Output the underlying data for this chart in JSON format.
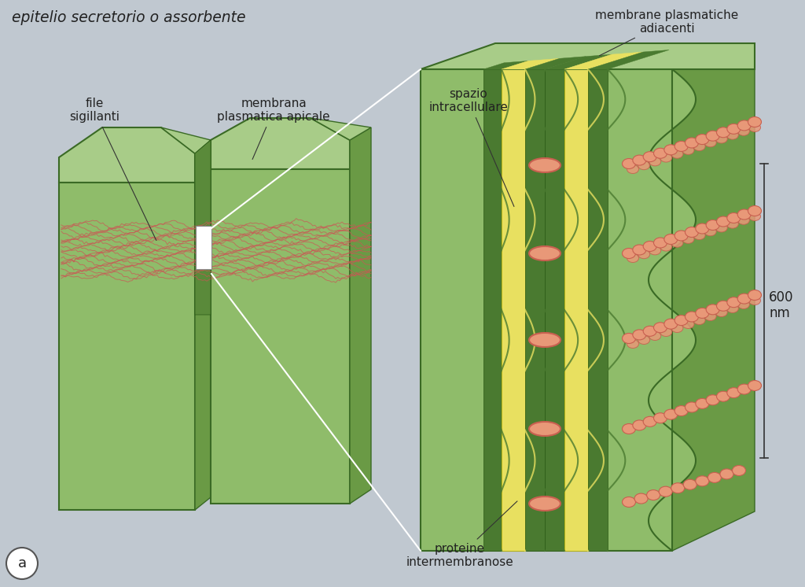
{
  "bg_color": "#c0c8d0",
  "cell_green_light": "#8fbc6a",
  "cell_green_dark": "#5a8a3a",
  "cell_green_mid": "#7aab55",
  "cell_top_color": "#a8cc88",
  "cell_side_dark": "#6a9a45",
  "membrane_yellow": "#e8e060",
  "membrane_dark_green": "#4a7a30",
  "protein_color": "#e89878",
  "protein_dark": "#c86050",
  "red_network": "#cc5555",
  "white_box": "#ffffff",
  "text_color": "#222222",
  "title_left": "epitelio secretorio o assorbente",
  "label_file_sigillanti": "file\nsigillanti",
  "label_membrana": "membrana\nplasmatica apicale",
  "label_spazio": "spazio\nintracellulare",
  "label_membrane_plasm": "membrane plasmatiche\nadiacenti",
  "label_proteine": "proteine\nintermembranose",
  "label_600nm": "600\nnm",
  "label_a": "a"
}
